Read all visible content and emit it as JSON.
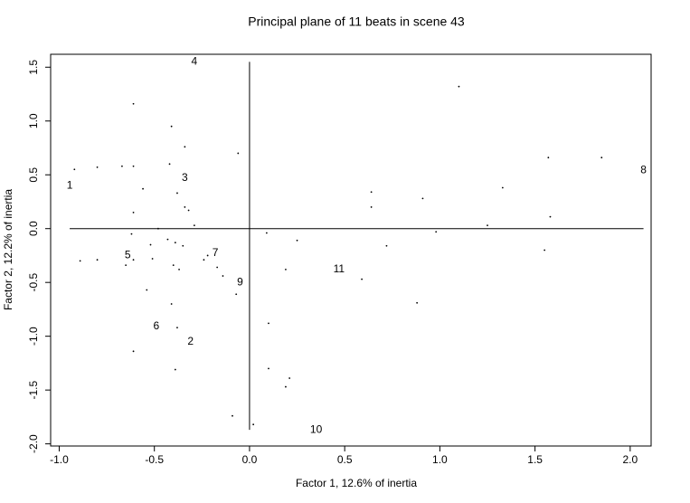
{
  "chart_data": {
    "type": "scatter",
    "title": "Principal plane of 11 beats in scene 43",
    "xlabel": "Factor 1, 12.6% of inertia",
    "ylabel": "Factor 2, 12.2% of inertia",
    "xlim": [
      -1.045,
      2.11
    ],
    "ylim": [
      -2.02,
      1.62
    ],
    "xticks": [
      {
        "value": -1,
        "label": "-1.0"
      },
      -0.5,
      {
        "value": 0,
        "label": "0.0"
      },
      0.5,
      {
        "value": 1,
        "label": "1.0"
      },
      1.5,
      {
        "value": 2,
        "label": "2.0"
      }
    ],
    "yticks": [
      {
        "value": -2,
        "label": "-2.0"
      },
      -1.5,
      {
        "value": -1,
        "label": "-1.0"
      },
      -0.5,
      {
        "value": 0,
        "label": "0.0"
      },
      0.5,
      {
        "value": 1,
        "label": "1.0"
      },
      1.5
    ],
    "labeled_points": {
      "labels": [
        "1",
        "2",
        "3",
        "4",
        "5",
        "6",
        "7",
        "8",
        "9",
        "10",
        "11"
      ],
      "x": [
        -0.945,
        -0.31,
        -0.34,
        -0.29,
        -0.64,
        -0.49,
        -0.18,
        2.07,
        -0.05,
        0.35,
        0.47
      ],
      "y": [
        0.4,
        -1.05,
        0.47,
        1.55,
        -0.25,
        -0.91,
        -0.23,
        0.54,
        -0.5,
        -1.87,
        -0.38
      ]
    },
    "points": {
      "x": [
        -0.92,
        -0.8,
        -0.67,
        -0.61,
        -0.61,
        -0.41,
        -0.34,
        -0.06,
        -0.42,
        -0.56,
        -0.38,
        -0.61,
        -0.34,
        -0.32,
        -0.29,
        -0.48,
        -0.62,
        -0.43,
        -0.39,
        -0.35,
        -0.52,
        -0.61,
        -0.65,
        -0.51,
        -0.89,
        -0.8,
        -0.4,
        -0.37,
        -0.22,
        -0.24,
        -0.17,
        -0.14,
        -0.07,
        -0.54,
        -0.41,
        -0.38,
        -0.61,
        -0.39,
        -0.09,
        0.02,
        0.09,
        0.25,
        0.19,
        0.1,
        0.1,
        0.21,
        0.19,
        0.64,
        0.64,
        0.91,
        0.72,
        0.59,
        0.88,
        0.98,
        1.1,
        1.33,
        1.25,
        1.57,
        1.85,
        1.58,
        1.55
      ],
      "y": [
        0.55,
        0.57,
        0.58,
        0.58,
        1.16,
        0.95,
        0.76,
        0.7,
        0.6,
        0.37,
        0.33,
        0.15,
        0.2,
        0.17,
        0.03,
        0.0,
        -0.05,
        -0.1,
        -0.13,
        -0.16,
        -0.15,
        -0.29,
        -0.34,
        -0.28,
        -0.3,
        -0.29,
        -0.34,
        -0.38,
        -0.25,
        -0.29,
        -0.36,
        -0.44,
        -0.61,
        -0.57,
        -0.7,
        -0.92,
        -1.14,
        -1.31,
        -1.74,
        -1.82,
        -0.04,
        -0.11,
        -0.38,
        -0.88,
        -1.3,
        -1.39,
        -1.47,
        0.34,
        0.2,
        0.28,
        -0.16,
        -0.47,
        -0.69,
        -0.03,
        1.32,
        0.38,
        0.03,
        0.66,
        0.66,
        0.11,
        -0.2
      ]
    }
  }
}
